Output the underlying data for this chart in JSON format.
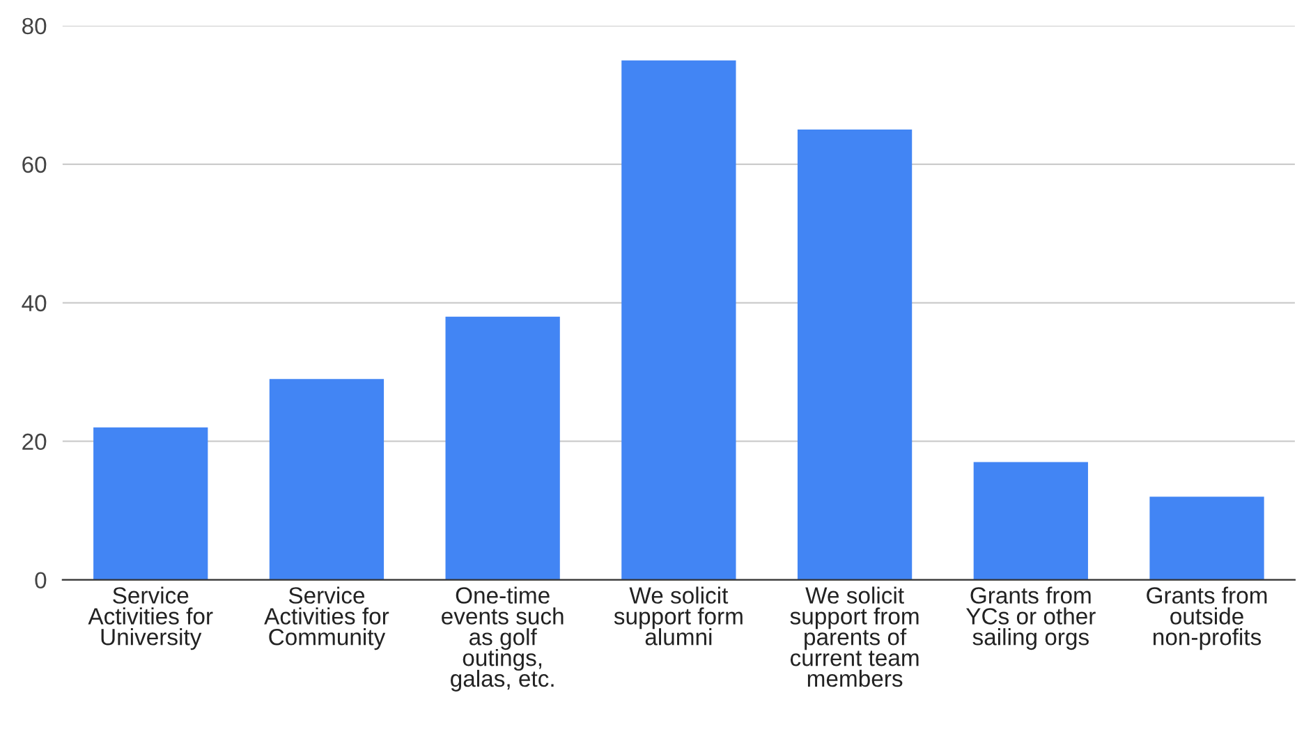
{
  "chart_data": {
    "type": "bar",
    "categories": [
      "Service\nActivities for\nUniversity",
      "Service\nActivities for\nCommunity",
      "One-time\nevents such\nas golf\noutings,\ngalas, etc.",
      "We solicit\nsupport form\nalumni",
      "We solicit\nsupport from\nparents of\ncurrent team\nmembers",
      "Grants from\nYCs or other\nsailing orgs",
      "Grants from\noutside\nnon-profits"
    ],
    "values": [
      22,
      29,
      38,
      75,
      65,
      17,
      12
    ],
    "color": "#4285f4",
    "ylim": [
      0,
      80
    ],
    "yticks": [
      0,
      20,
      40,
      60,
      80
    ],
    "grid": "y",
    "legend": false
  }
}
